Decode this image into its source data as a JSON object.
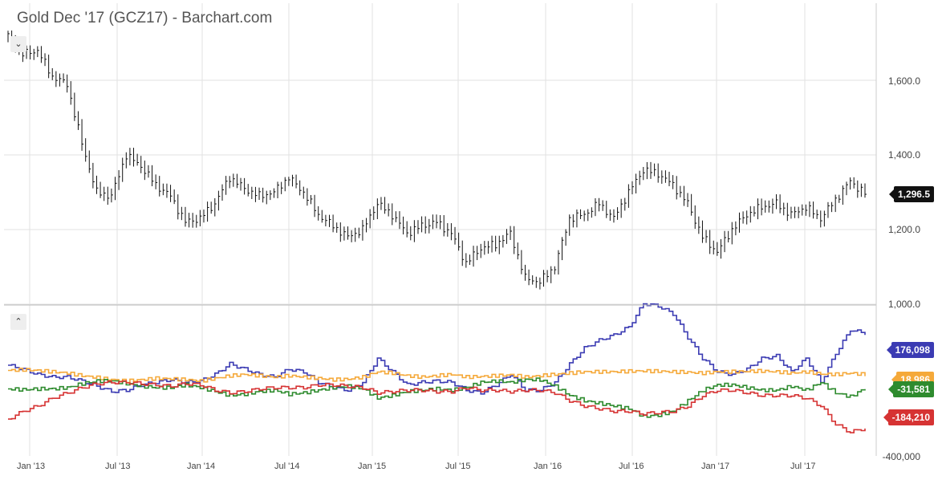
{
  "header": {
    "title": "Gold Dec '17 (GCZ17) - Barchart.com"
  },
  "controls": {
    "collapse_top": "⌄",
    "collapse_bottom": "⌃"
  },
  "colors": {
    "price": "#111111",
    "grid": "#e2e2e2",
    "blue": "#3b3bb3",
    "orange": "#f5a93a",
    "green": "#2e8b2e",
    "red": "#d63333",
    "last_price_badge": "#111111"
  },
  "badges": {
    "last_price": "1,296.5",
    "blue": "176,098",
    "orange": "18,986",
    "green": "-31,581",
    "red": "-184,210"
  },
  "x_axis_labels": [
    "Jan '13",
    "Jul '13",
    "Jan '14",
    "Jul '14",
    "Jan '15",
    "Jul '15",
    "Jan '16",
    "Jul '16",
    "Jan '17",
    "Jul '17"
  ],
  "price_axis_labels": [
    "1,600.0",
    "1,400.0",
    "1,200.0",
    "1,000.0"
  ],
  "lower_axis_labels": [
    "-400,000"
  ],
  "chart_data": [
    {
      "type": "line",
      "chart_style": "ohlc-bars-weekly",
      "title": "Gold Dec '17 (GCZ17) - Barchart.com",
      "x_range": [
        "2012-12",
        "2017-10"
      ],
      "ylim": [
        1000,
        1800
      ],
      "y_ticks": [
        1600,
        1400,
        1200,
        1000
      ],
      "last_value": 1296.5,
      "series": [
        {
          "x": [
            "2012-12",
            "2013-01",
            "2013-02",
            "2013-03",
            "2013-04",
            "2013-05",
            "2013-06",
            "2013-07",
            "2013-08",
            "2013-09",
            "2013-10",
            "2013-11",
            "2013-12",
            "2014-01",
            "2014-02",
            "2014-03",
            "2014-04",
            "2014-05",
            "2014-06",
            "2014-07",
            "2014-08",
            "2014-09",
            "2014-10",
            "2014-11",
            "2014-12",
            "2015-01",
            "2015-02",
            "2015-03",
            "2015-04",
            "2015-05",
            "2015-06",
            "2015-07",
            "2015-08",
            "2015-09",
            "2015-10",
            "2015-11",
            "2015-12",
            "2016-01",
            "2016-02",
            "2016-03",
            "2016-04",
            "2016-05",
            "2016-06",
            "2016-07",
            "2016-08",
            "2016-09",
            "2016-10",
            "2016-11",
            "2016-12",
            "2017-01",
            "2017-02",
            "2017-03",
            "2017-04",
            "2017-05",
            "2017-06",
            "2017-07",
            "2017-08",
            "2017-09",
            "2017-10"
          ],
          "values": [
            1720,
            1670,
            1680,
            1610,
            1590,
            1430,
            1300,
            1290,
            1400,
            1370,
            1320,
            1290,
            1220,
            1230,
            1270,
            1340,
            1310,
            1290,
            1300,
            1340,
            1300,
            1240,
            1210,
            1180,
            1200,
            1270,
            1240,
            1190,
            1210,
            1220,
            1190,
            1110,
            1150,
            1160,
            1190,
            1070,
            1060,
            1100,
            1230,
            1240,
            1270,
            1230,
            1300,
            1360,
            1350,
            1320,
            1270,
            1180,
            1140,
            1200,
            1240,
            1260,
            1270,
            1240,
            1260,
            1230,
            1280,
            1330,
            1296.5
          ]
        }
      ]
    },
    {
      "type": "line",
      "title": "",
      "x_range": [
        "2012-12",
        "2017-10"
      ],
      "y_ticks": [
        -400000
      ],
      "series": [
        {
          "name": "",
          "color": "#3b3bb3",
          "last_value": 176098,
          "values": [
            55000,
            40000,
            20000,
            10000,
            10000,
            -5000,
            -25000,
            -45000,
            -40000,
            -20000,
            -10000,
            0,
            -10000,
            -5000,
            20000,
            60000,
            40000,
            20000,
            10000,
            40000,
            30000,
            -10000,
            -30000,
            -40000,
            -10000,
            80000,
            30000,
            -20000,
            -10000,
            -5000,
            -10000,
            -40000,
            -50000,
            -20000,
            20000,
            -40000,
            -40000,
            -10000,
            60000,
            120000,
            150000,
            170000,
            200000,
            290000,
            280000,
            250000,
            160000,
            80000,
            30000,
            20000,
            40000,
            80000,
            90000,
            30000,
            80000,
            -10000,
            100000,
            190000,
            176098
          ]
        },
        {
          "name": "",
          "color": "#f5a93a",
          "last_value": 18986,
          "values": [
            35000,
            38000,
            35000,
            30000,
            25000,
            15000,
            8000,
            0,
            -5000,
            0,
            5000,
            3000,
            0,
            -5000,
            5000,
            15000,
            20000,
            15000,
            10000,
            15000,
            10000,
            5000,
            0,
            2000,
            10000,
            30000,
            25000,
            15000,
            10000,
            15000,
            20000,
            10000,
            12000,
            15000,
            18000,
            10000,
            15000,
            20000,
            25000,
            30000,
            30000,
            30000,
            32000,
            33000,
            32000,
            30000,
            28000,
            25000,
            30000,
            30000,
            32000,
            33000,
            30000,
            25000,
            30000,
            22000,
            20000,
            25000,
            18986
          ]
        },
        {
          "name": "",
          "color": "#2e8b2e",
          "last_value": -31581,
          "values": [
            -35000,
            -38000,
            -35000,
            -35000,
            -30000,
            -15000,
            -5000,
            -5000,
            -15000,
            -25000,
            -30000,
            -30000,
            -20000,
            -30000,
            -45000,
            -60000,
            -55000,
            -45000,
            -40000,
            -55000,
            -50000,
            -40000,
            -30000,
            -25000,
            -35000,
            -70000,
            -60000,
            -45000,
            -40000,
            -35000,
            -40000,
            -30000,
            -10000,
            -5000,
            -10000,
            0,
            0,
            -25000,
            -60000,
            -80000,
            -90000,
            -100000,
            -110000,
            -140000,
            -135000,
            -120000,
            -80000,
            -40000,
            -20000,
            -20000,
            -30000,
            -40000,
            -40000,
            -25000,
            -40000,
            -10000,
            -50000,
            -65000,
            -31581
          ]
        },
        {
          "name": "",
          "color": "#d63333",
          "last_value": -184210,
          "values": [
            -150000,
            -120000,
            -100000,
            -70000,
            -50000,
            -30000,
            -15000,
            -10000,
            -10000,
            -15000,
            -20000,
            -25000,
            -15000,
            -20000,
            -40000,
            -50000,
            -45000,
            -35000,
            -30000,
            -30000,
            -30000,
            -20000,
            -20000,
            -25000,
            -30000,
            -50000,
            -45000,
            -40000,
            -40000,
            -45000,
            -45000,
            -30000,
            -40000,
            -40000,
            -45000,
            -40000,
            -40000,
            -50000,
            -80000,
            -100000,
            -110000,
            -120000,
            -120000,
            -130000,
            -125000,
            -120000,
            -100000,
            -60000,
            -40000,
            -40000,
            -50000,
            -60000,
            -60000,
            -60000,
            -70000,
            -100000,
            -170000,
            -200000,
            -184210
          ]
        }
      ]
    }
  ]
}
